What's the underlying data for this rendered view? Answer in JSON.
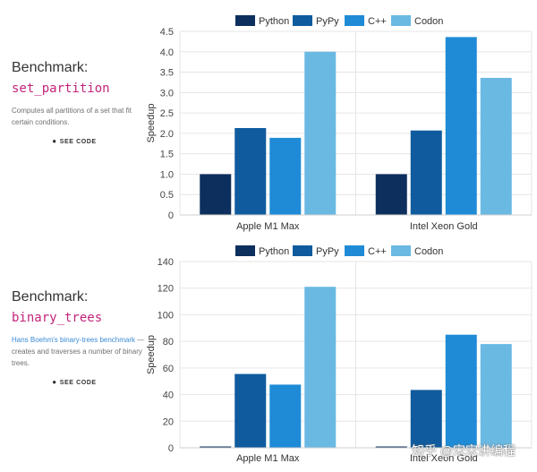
{
  "panels": [
    {
      "heading": "Benchmark:",
      "function": "set_partition",
      "description": "Computes all partitions of a set that fit certain conditions.",
      "see_code": "SEE CODE"
    },
    {
      "heading": "Benchmark:",
      "function": "binary_trees",
      "description_link": "Hans Boehm's binary-trees benchmark",
      "description": "— creates and traverses a number of binary trees.",
      "see_code": "SEE CODE"
    }
  ],
  "colors": {
    "Python": "#0d2f5e",
    "PyPy": "#0f5b9e",
    "C++": "#1f8bd6",
    "Codon": "#6ab9e3"
  },
  "chart_data": [
    {
      "type": "bar",
      "title": "set_partition",
      "categories": [
        "Apple M1 Max",
        "Intel Xeon Gold"
      ],
      "series": [
        {
          "name": "Python",
          "values": [
            1.0,
            1.0
          ]
        },
        {
          "name": "PyPy",
          "values": [
            2.13,
            2.07
          ]
        },
        {
          "name": "C++",
          "values": [
            1.89,
            4.36
          ]
        },
        {
          "name": "Codon",
          "values": [
            4.0,
            3.36
          ]
        }
      ],
      "ylabel": "Speedup",
      "xlabel": "",
      "ylim": [
        0,
        4.5
      ],
      "yticks": [
        "0",
        "0.5",
        "1.0",
        "1.5",
        "2.0",
        "2.5",
        "3.0",
        "3.5",
        "4.0",
        "4.5"
      ],
      "grid": true,
      "legend": "top-center"
    },
    {
      "type": "bar",
      "title": "binary_trees",
      "categories": [
        "Apple M1 Max",
        "Intel Xeon Gold"
      ],
      "series": [
        {
          "name": "Python",
          "values": [
            1,
            1
          ]
        },
        {
          "name": "PyPy",
          "values": [
            55.5,
            43.5
          ]
        },
        {
          "name": "C++",
          "values": [
            47.5,
            85
          ]
        },
        {
          "name": "Codon",
          "values": [
            121,
            78
          ]
        }
      ],
      "ylabel": "Speedup",
      "xlabel": "",
      "ylim": [
        0,
        140
      ],
      "yticks": [
        "0",
        "20",
        "40",
        "60",
        "80",
        "100",
        "120",
        "140"
      ],
      "grid": true,
      "legend": "top-center"
    }
  ],
  "watermark": "知乎 @宋宋讲编程"
}
